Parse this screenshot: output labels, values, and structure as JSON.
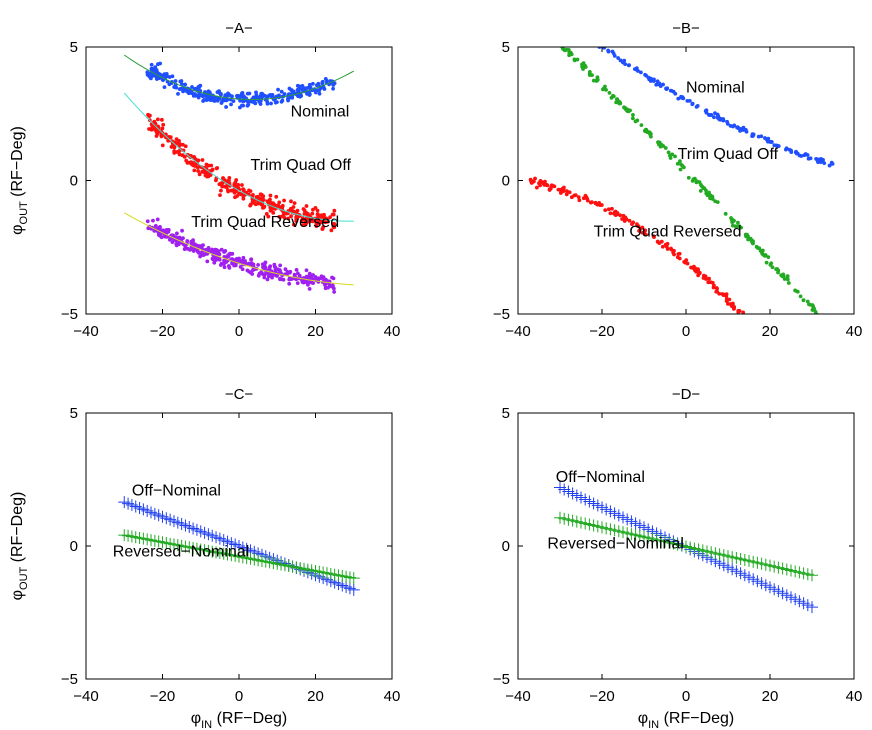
{
  "figure_axis_labels": {
    "y_symbol": "φ",
    "y_subscript": "OUT",
    "y_units": " (RF−Deg)",
    "x_symbol": "φ",
    "x_subscript": "IN",
    "x_units": " (RF−Deg)"
  },
  "chart_data": [
    {
      "panel": "A",
      "type": "scatter",
      "title": "−A−",
      "xlim": [
        -40,
        40
      ],
      "ylim": [
        -5,
        5
      ],
      "xticks": [
        -40,
        -20,
        0,
        20,
        40
      ],
      "yticks": [
        -5,
        0,
        5
      ],
      "xtick_labels": [
        "−40",
        "−20",
        "0",
        "20",
        "40"
      ],
      "ytick_labels": [
        "−5",
        "0",
        "5"
      ],
      "show_xlabel": false,
      "show_ylabel": true,
      "series": [
        {
          "name": "Nominal",
          "style": "dots",
          "color": "#1f4fff",
          "fit_color": "#2a9d3a",
          "x_range": [
            -24,
            25
          ],
          "fit_x_range": [
            -30,
            30
          ],
          "quad": [
            3.05,
            -0.01,
            0.0015
          ],
          "scatter": 0.25,
          "count": 320,
          "seed": 11
        },
        {
          "name": "Trim Quad Off",
          "style": "dots",
          "color": "#ff1010",
          "fit_color": "#40e0d0",
          "x_range": [
            -24,
            25
          ],
          "fit_x_range": [
            -30,
            30
          ],
          "quad": [
            -0.38,
            -0.08,
            0.0014
          ],
          "scatter": 0.3,
          "count": 380,
          "seed": 23
        },
        {
          "name": "Trim Quad Reversed",
          "style": "dots",
          "color": "#a020f0",
          "fit_color": "#d8d820",
          "x_range": [
            -24,
            25
          ],
          "fit_x_range": [
            -30,
            30
          ],
          "quad": [
            -3.1,
            -0.045,
            0.0006
          ],
          "scatter": 0.25,
          "count": 360,
          "seed": 37
        }
      ],
      "annotations": [
        {
          "text": "Nominal",
          "x": 13.5,
          "y": 2.4
        },
        {
          "text": "Trim Quad Off",
          "x": 3,
          "y": 0.4
        },
        {
          "text": "Trim Quad Reversed",
          "x": -12.5,
          "y": -1.75
        }
      ]
    },
    {
      "panel": "B",
      "type": "scatter",
      "title": "−B−",
      "xlim": [
        -40,
        40
      ],
      "ylim": [
        -5,
        5
      ],
      "xticks": [
        -40,
        -20,
        0,
        20,
        40
      ],
      "yticks": [
        -5,
        0,
        5
      ],
      "xtick_labels": [
        "−40",
        "−20",
        "0",
        "20",
        "40"
      ],
      "ytick_labels": [
        "−5",
        "0",
        "5"
      ],
      "show_xlabel": false,
      "show_ylabel": false,
      "series": [
        {
          "name": "Nominal",
          "style": "dots",
          "color": "#1f4fff",
          "x_range": [
            -22,
            35
          ],
          "quad": [
            3.0,
            -0.09,
            0.0006
          ],
          "scatter": 0.08,
          "count": 150,
          "seed": 41
        },
        {
          "name": "Trim Quad Off",
          "style": "dots",
          "color": "#22aa22",
          "x_range": [
            -30,
            35
          ],
          "quad": [
            0.35,
            -0.165,
            -0.0002
          ],
          "scatter": 0.12,
          "count": 200,
          "seed": 53
        },
        {
          "name": "Trim Quad Reversed",
          "style": "dots",
          "color": "#ff1010",
          "x_range": [
            -37,
            15
          ],
          "quad": [
            -3.05,
            -0.13,
            -0.0013
          ],
          "scatter": 0.12,
          "count": 170,
          "seed": 67
        }
      ],
      "annotations": [
        {
          "text": "Nominal",
          "x": 0,
          "y": 3.3
        },
        {
          "text": "Trim Quad Off",
          "x": -2,
          "y": 0.8
        },
        {
          "text": "Trim Quad Reversed",
          "x": -22,
          "y": -2.1
        }
      ]
    },
    {
      "panel": "C",
      "type": "line",
      "title": "−C−",
      "xlim": [
        -40,
        40
      ],
      "ylim": [
        -5,
        5
      ],
      "xticks": [
        -40,
        -20,
        0,
        20,
        40
      ],
      "yticks": [
        -5,
        0,
        5
      ],
      "xtick_labels": [
        "−40",
        "−20",
        "0",
        "20",
        "40"
      ],
      "ytick_labels": [
        "−5",
        "0",
        "5"
      ],
      "show_xlabel": true,
      "show_ylabel": true,
      "series": [
        {
          "name": "Off−Nominal",
          "style": "plus",
          "color": "#1f3ff0",
          "x_range": [
            -30,
            30
          ],
          "quad": [
            0.0,
            -0.055,
            0.0
          ],
          "count": 61
        },
        {
          "name": "Reversed−Nominal",
          "style": "plus",
          "color": "#22aa22",
          "x_range": [
            -30,
            30
          ],
          "quad": [
            -0.4,
            -0.027,
            0.0
          ],
          "count": 61
        }
      ],
      "annotations": [
        {
          "text": "Off−Nominal",
          "x": -28,
          "y": 1.9
        },
        {
          "text": "Reversed−Nominal",
          "x": -33,
          "y": -0.4
        }
      ]
    },
    {
      "panel": "D",
      "type": "line",
      "title": "−D−",
      "xlim": [
        -40,
        40
      ],
      "ylim": [
        -5,
        5
      ],
      "xticks": [
        -40,
        -20,
        0,
        20,
        40
      ],
      "yticks": [
        -5,
        0,
        5
      ],
      "xtick_labels": [
        "−40",
        "−20",
        "0",
        "20",
        "40"
      ],
      "ytick_labels": [
        "−5",
        "0",
        "5"
      ],
      "show_xlabel": true,
      "show_ylabel": false,
      "series": [
        {
          "name": "Off−Nominal",
          "style": "plus",
          "color": "#1f3ff0",
          "x_range": [
            -30,
            30
          ],
          "quad": [
            -0.05,
            -0.075,
            0.0
          ],
          "count": 61
        },
        {
          "name": "Reversed−Nominal",
          "style": "plus",
          "color": "#22aa22",
          "x_range": [
            -30,
            30
          ],
          "quad": [
            -0.02,
            -0.036,
            0.0
          ],
          "count": 61
        }
      ],
      "annotations": [
        {
          "text": "Off−Nominal",
          "x": -31,
          "y": 2.4
        },
        {
          "text": "Reversed−Nominal",
          "x": -33,
          "y": -0.1
        }
      ]
    }
  ]
}
